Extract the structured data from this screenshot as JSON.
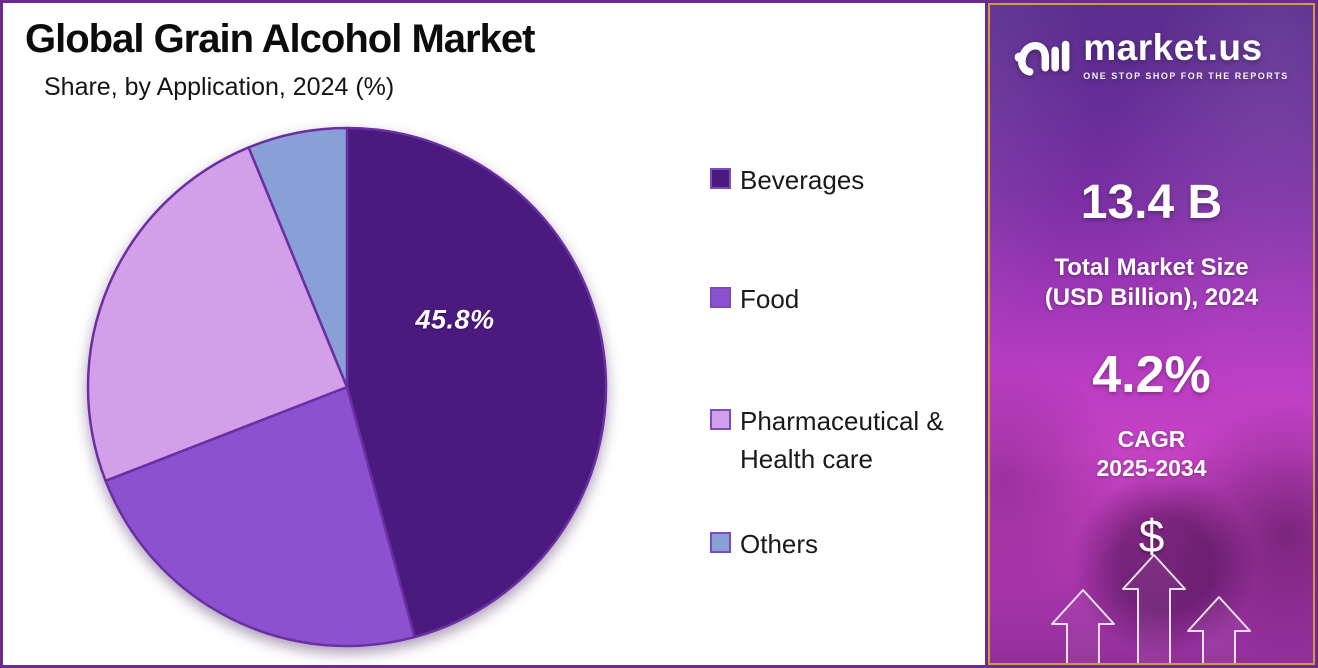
{
  "page": {
    "border_color": "#6B2C8F"
  },
  "chart_data": {
    "type": "pie",
    "title": "Global Grain Alcohol Market",
    "subtitle": "Share, by Application, 2024 (%)",
    "unit": "%",
    "direction": "clockwise",
    "start_angle_deg": 0,
    "legend_position": "right",
    "slice_border_color": "#6B2FA3",
    "slices": [
      {
        "label": "Beverages",
        "value": 45.8,
        "color": "#4A1A7E",
        "data_label": "45.8%"
      },
      {
        "label": "Food",
        "value": 23.3,
        "color": "#8B51CE",
        "data_label": null
      },
      {
        "label": "Pharmaceutical & Health care",
        "value": 24.7,
        "color": "#D49FE9",
        "data_label": null
      },
      {
        "label": "Others",
        "value": 6.2,
        "color": "#88A0D6",
        "data_label": null
      }
    ]
  },
  "sidebar": {
    "brand": "market.us",
    "tagline": "ONE STOP SHOP FOR THE REPORTS",
    "market_size_value": "13.4 B",
    "market_size_label": [
      "Total Market Size",
      "(USD Billion), 2024"
    ],
    "cagr_value": "4.2%",
    "cagr_label": [
      "CAGR",
      "2025-2034"
    ],
    "currency_symbol": "$",
    "border_color": "#D49A3F"
  }
}
